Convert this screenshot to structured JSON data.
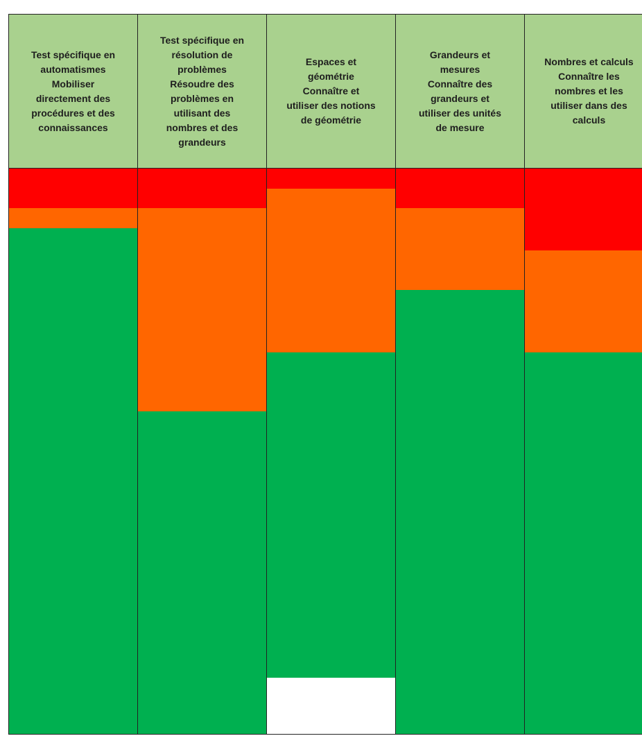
{
  "chart_data": {
    "type": "stacked-bar",
    "categories": [
      [
        "Test spécifique en",
        "automatismes",
        "Mobiliser",
        "directement des",
        "procédures et des",
        "connaissances"
      ],
      [
        "Test spécifique en",
        "résolution de",
        "problèmes",
        "Résoudre des",
        "problèmes en",
        "utilisant des",
        "nombres et des",
        "grandeurs"
      ],
      [
        "Espaces et",
        "géométrie",
        "Connaître et",
        "utiliser des notions",
        "de géométrie"
      ],
      [
        "Grandeurs et",
        "mesures",
        "Connaître des",
        "grandeurs et",
        "utiliser des unités",
        "de mesure"
      ],
      [
        "Nombres et calculs",
        "Connaître les",
        "nombres et les",
        "utiliser dans des",
        "calculs"
      ]
    ],
    "series": [
      {
        "color": "#ff0000",
        "values": [
          7,
          7,
          3.5,
          7,
          14.5
        ]
      },
      {
        "color": "#ff6600",
        "values": [
          3.5,
          36,
          29,
          14.5,
          18
        ]
      },
      {
        "color": "#00b050",
        "values": [
          89.5,
          57,
          57.5,
          78.5,
          67.5
        ]
      }
    ],
    "ylim": [
      0,
      100
    ],
    "header_color": "#a9d18e"
  }
}
